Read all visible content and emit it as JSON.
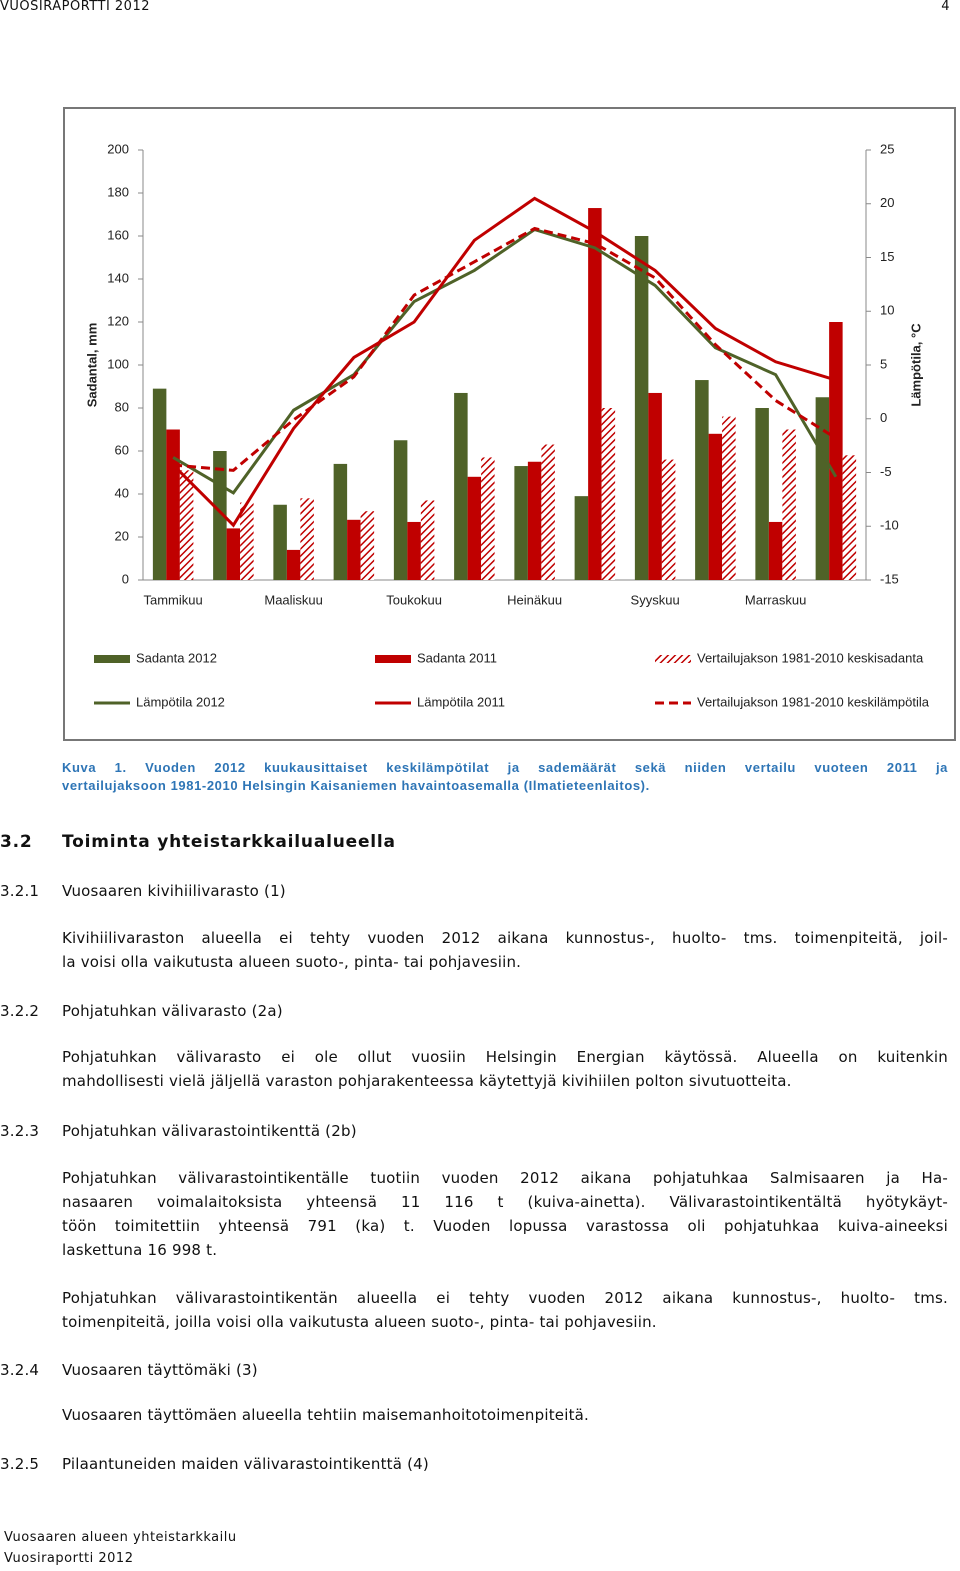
{
  "header": {
    "title": "VUOSIRAPORTTI 2012",
    "page": "4"
  },
  "chart_data": {
    "type": "bar_line",
    "ylabel": "Sadantal, mm",
    "y2label": "Lämpötila, °C",
    "categories": [
      "Tammikuu",
      null,
      "Maaliskuu",
      null,
      "Toukokuu",
      null,
      "Heinäkuu",
      null,
      "Syyskuu",
      null,
      "Marraskuu",
      null
    ],
    "ylim": [
      0,
      200
    ],
    "yticks": [
      0,
      20,
      40,
      60,
      80,
      100,
      120,
      140,
      160,
      180,
      200
    ],
    "y2lim": [
      -15,
      25
    ],
    "y2ticks": [
      -15,
      -10,
      -5,
      0,
      5,
      10,
      15,
      20,
      25
    ],
    "legend": "bottom",
    "series": [
      {
        "name": "Sadanta 2012",
        "type": "bar",
        "style": "solid",
        "color": "#4f6228",
        "values": [
          89,
          60,
          35,
          54,
          65,
          87,
          53,
          39,
          160,
          93,
          80,
          85
        ]
      },
      {
        "name": "Sadanta 2011",
        "type": "bar",
        "style": "solid",
        "color": "#c00000",
        "values": [
          70,
          24,
          14,
          28,
          27,
          48,
          55,
          173,
          87,
          68,
          27,
          120
        ]
      },
      {
        "name": "Vertailujakson 1981-2010 keskisadanta",
        "type": "bar",
        "style": "hatched",
        "color": "#c00000",
        "values": [
          51,
          36,
          38,
          32,
          37,
          57,
          63,
          80,
          56,
          76,
          70,
          58
        ]
      },
      {
        "name": "Lämpötila 2012",
        "type": "line",
        "style": "solid",
        "axis": "y2",
        "color": "#4f6228",
        "values": [
          -3.6,
          -6.9,
          0.8,
          4.1,
          10.9,
          13.8,
          17.6,
          15.9,
          12.4,
          6.6,
          4.1,
          -5.4
        ]
      },
      {
        "name": "Lämpötila 2011",
        "type": "line",
        "style": "solid",
        "axis": "y2",
        "color": "#c00000",
        "values": [
          -4.3,
          -9.9,
          -0.9,
          5.7,
          9.0,
          16.6,
          20.5,
          17.4,
          13.8,
          8.4,
          5.3,
          3.6
        ]
      },
      {
        "name": "Vertailujakson 1981-2010 keskilämpötila",
        "type": "line",
        "style": "dashed",
        "axis": "y2",
        "color": "#c00000",
        "values": [
          -4.3,
          -4.8,
          -0.1,
          3.9,
          11.5,
          14.6,
          17.7,
          16.3,
          13.1,
          6.9,
          1.7,
          -1.8
        ]
      }
    ]
  },
  "caption": [
    "Kuva 1. Vuoden 2012 kuukausittaiset keskilämpötilat ja sademäärät sekä niiden vertailu vuoteen 2011 ja",
    "vertailujaksoon 1981-2010 Helsingin Kaisaniemen havaintoasemalla (Ilmatieteenlaitos)."
  ],
  "heading": {
    "number": "3.2",
    "title": "Toiminta yhteistarkkailualueella"
  },
  "subsections": [
    {
      "number": "3.2.1",
      "title": "Vuosaaren kivihiilivarasto (1)",
      "paragraphs": [
        [
          "Kivihiilivaraston alueella ei tehty vuoden 2012 aikana kunnostus-, huolto- tms. toimenpiteitä, joil-",
          "la voisi olla vaikutusta alueen suoto-, pinta- tai pohjavesiin."
        ]
      ]
    },
    {
      "number": "3.2.2",
      "title": "Pohjatuhkan välivarasto (2a)",
      "paragraphs": [
        [
          "Pohjatuhkan välivarasto ei ole ollut vuosiin Helsingin Energian käytössä. Alueella on kuitenkin",
          "mahdollisesti vielä jäljellä varaston pohjarakenteessa käytettyjä kivihiilen polton sivutuotteita."
        ]
      ]
    },
    {
      "number": "3.2.3",
      "title": "Pohjatuhkan välivarastointikenttä (2b)",
      "paragraphs": [
        [
          "Pohjatuhkan välivarastointikentälle tuotiin vuoden 2012 aikana pohjatuhkaa Salmisaaren ja Ha-",
          "nasaaren voimalaitoksista yhteensä 11 116 t (kuiva-ainetta). Välivarastointikentältä hyötykäyt-",
          "töön toimitettiin yhteensä 791 (ka) t. Vuoden lopussa varastossa oli pohjatuhkaa kuiva-aineeksi",
          "laskettuna 16 998 t."
        ],
        [
          "Pohjatuhkan välivarastointikentän alueella ei tehty vuoden 2012 aikana kunnostus-, huolto- tms.",
          "toimenpiteitä, joilla voisi olla vaikutusta alueen suoto-, pinta- tai pohjavesiin."
        ]
      ]
    },
    {
      "number": "3.2.4",
      "title": "Vuosaaren täyttömäki (3)",
      "paragraphs": [
        [
          "Vuosaaren täyttömäen alueella tehtiin maisemanhoitotoimenpiteitä."
        ]
      ]
    },
    {
      "number": "3.2.5",
      "title": "Pilaantuneiden maiden välivarastointikenttä (4)",
      "paragraphs": []
    }
  ],
  "footer": [
    "Vuosaaren alueen yhteistarkkailu",
    "Vuosiraportti 2012"
  ]
}
